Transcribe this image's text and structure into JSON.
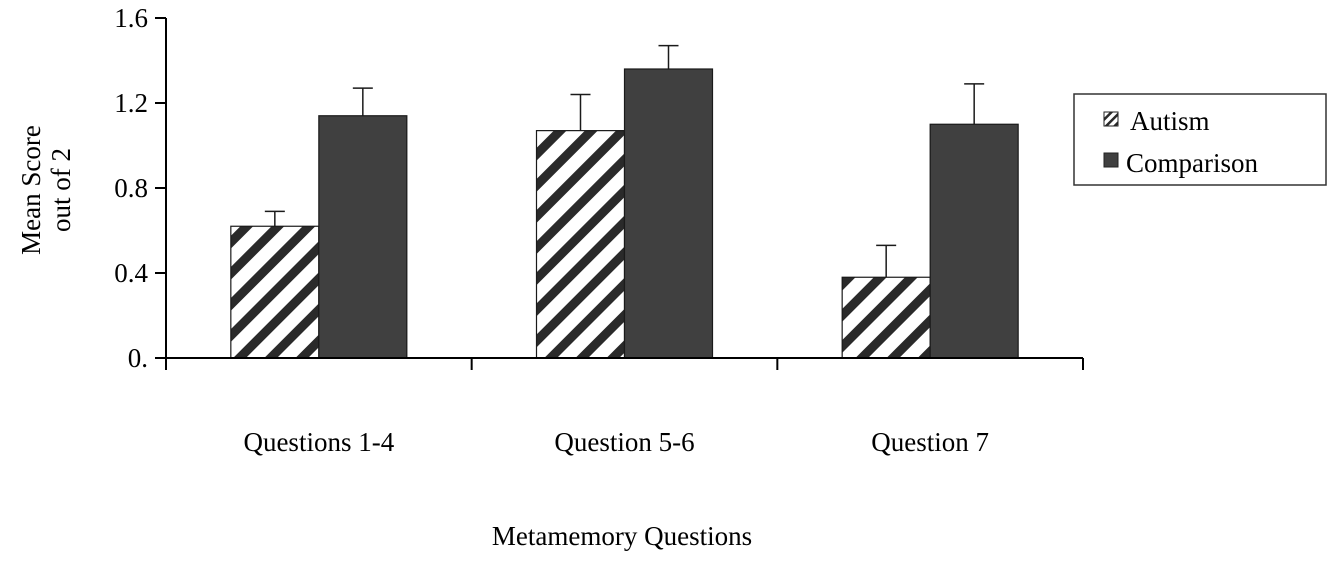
{
  "chart_data": {
    "type": "bar",
    "xlabel": "Metamemory Questions",
    "ylabel_lines": [
      "Mean Score",
      "out of 2"
    ],
    "ylim": [
      0,
      1.6
    ],
    "yticks": [
      {
        "value": 0,
        "label": "0."
      },
      {
        "value": 0.4,
        "label": "0.4"
      },
      {
        "value": 0.8,
        "label": "0.8"
      },
      {
        "value": 1.2,
        "label": "1.2"
      },
      {
        "value": 1.6,
        "label": "1.6"
      }
    ],
    "categories": [
      "Questions 1-4",
      "Question 5-6",
      "Question 7"
    ],
    "series": [
      {
        "name": "Autism",
        "pattern": "hatch",
        "color": "#ffffff",
        "values": [
          0.62,
          1.07,
          0.38
        ],
        "errors": [
          0.07,
          0.17,
          0.15
        ]
      },
      {
        "name": "Comparison",
        "pattern": "solid",
        "color": "#404040",
        "values": [
          1.14,
          1.36,
          1.1
        ],
        "errors": [
          0.13,
          0.11,
          0.19
        ]
      }
    ],
    "legend_position": "right",
    "grid": false
  }
}
